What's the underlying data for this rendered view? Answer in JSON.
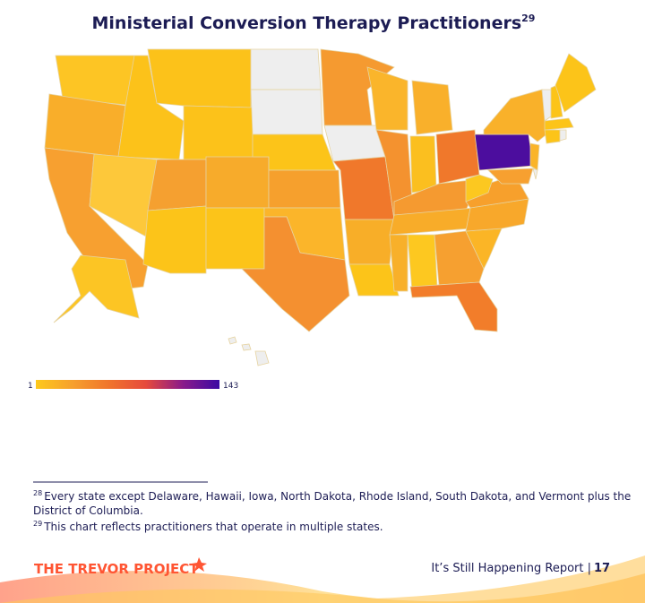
{
  "chart_data": {
    "type": "choropleth",
    "title": "Ministerial Conversion Therapy Practitioners",
    "title_superscript": "29",
    "colorbar": {
      "min": 1,
      "max": 143,
      "colors": [
        "#fdc91c",
        "#f6a02d",
        "#f0742c",
        "#e64a3c",
        "#8a1a8a",
        "#3b0aa3"
      ]
    },
    "regions": [
      {
        "color": "#fdc524"
      },
      {
        "color": "#f9ae2a"
      },
      {
        "color": "#f7a030"
      },
      {
        "color": "#fcc21a"
      },
      {
        "color": "#fdc83a"
      },
      {
        "color": "#fcc21a"
      },
      {
        "color": "#fcc21a"
      },
      {
        "color": "#f5a030"
      },
      {
        "color": "#fcc419"
      },
      {
        "color": "#f7ab2b"
      },
      {
        "color": "#fcc419"
      },
      {
        "color": "#eeeeee"
      },
      {
        "color": "#eeeeee"
      },
      {
        "color": "#fcc419"
      },
      {
        "color": "#f6a02d"
      },
      {
        "color": "#fbb52a"
      },
      {
        "color": "#f49030"
      },
      {
        "color": "#f59a30"
      },
      {
        "color": "#eeeeee"
      },
      {
        "color": "#f0782b"
      },
      {
        "color": "#f8ae28"
      },
      {
        "color": "#fcc419"
      },
      {
        "color": "#fab52b"
      },
      {
        "color": "#f4922f"
      },
      {
        "color": "#f9b02b"
      },
      {
        "color": "#fbbf1f"
      },
      {
        "color": "#f0782b"
      },
      {
        "color": "#f59a30"
      },
      {
        "color": "#f8ac29"
      },
      {
        "color": "#f8b02a"
      },
      {
        "color": "#fdc820"
      },
      {
        "color": "#f6a030"
      },
      {
        "color": "#f27d2a"
      },
      {
        "color": "#fbb526"
      },
      {
        "color": "#f8a82b"
      },
      {
        "color": "#f7a02c"
      },
      {
        "color": "#fcc820"
      },
      {
        "color": "#4c0d9e"
      },
      {
        "color": "#f9b12a"
      },
      {
        "color": "#fab429"
      },
      {
        "color": "#f7a030"
      },
      {
        "color": "#eeeeee"
      },
      {
        "color": "#eeeeee"
      },
      {
        "color": "#fcc419"
      },
      {
        "color": "#fcc419"
      },
      {
        "color": "#fcc419"
      },
      {
        "color": "#fcc419"
      },
      {
        "color": "#eeeeee"
      },
      {
        "color": "#fcc524"
      },
      {
        "color": "#eeeeee"
      }
    ]
  },
  "footnotes": [
    {
      "mark": "28",
      "text": "Every state except Delaware, Hawaii, Iowa, North Dakota, Rhode Island, South Dakota, and Vermont plus the",
      "text2": "District of Columbia."
    },
    {
      "mark": "29",
      "text": "This chart reflects practitioners that operate in multiple states."
    }
  ],
  "footer": {
    "logo": "THE TREVOR PROJECT",
    "report": "It’s Still Happening Report |",
    "page": "17"
  }
}
